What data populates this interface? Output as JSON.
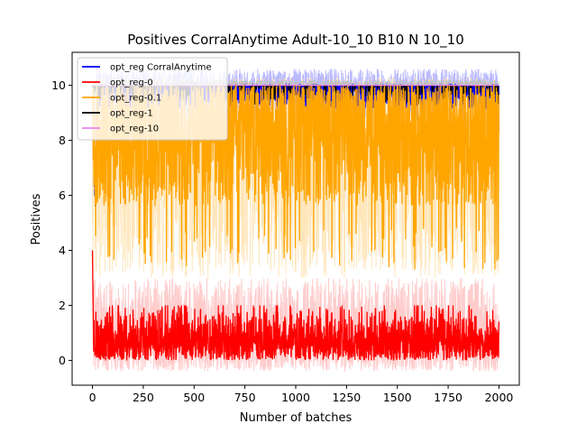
{
  "chart_data": {
    "type": "line",
    "title": "Positives CorralAnytime Adult-10_10 B10 N 10_10",
    "xlabel": "Number of batches",
    "ylabel": "Positives",
    "xlim": [
      -100,
      2100
    ],
    "ylim": [
      -0.9,
      11.2
    ],
    "xticks": [
      0,
      250,
      500,
      750,
      1000,
      1250,
      1500,
      1750,
      2000
    ],
    "yticks": [
      0,
      2,
      4,
      6,
      8,
      10
    ],
    "legend_position": "top-left",
    "grid": false,
    "n_batches": 2000,
    "series": [
      {
        "name": "opt_reg CorralAnytime",
        "color": "#0000ff",
        "band_color": "#b3b3ff",
        "start_value": 9.5,
        "early_dip": 5.4,
        "typical_range": [
          9.3,
          10.0
        ],
        "band_range": [
          8.6,
          10.6
        ]
      },
      {
        "name": "opt_reg-0",
        "color": "#ff0000",
        "band_color": "#ffc6c6",
        "start_value": 4.0,
        "typical_range": [
          0.0,
          1.8
        ],
        "band_range": [
          -0.4,
          3.0
        ]
      },
      {
        "name": "opt_reg-0.1",
        "color": "#ffa500",
        "band_color": "#ffe3b3",
        "start_value": 9.8,
        "typical_range": [
          6.0,
          10.0
        ],
        "min_value": 3.3,
        "band_range": [
          3.0,
          10.3
        ]
      },
      {
        "name": "opt_reg-1",
        "color": "#000000",
        "band_color": "#bfbfbf",
        "start_value": 10.0,
        "typical_range": [
          9.3,
          10.0
        ],
        "band_range": [
          9.5,
          10.2
        ]
      },
      {
        "name": "opt_reg-10",
        "color": "#ee82ee",
        "band_color": "#f8cdf8",
        "start_value": 10.0,
        "typical_range": [
          10.0,
          10.0
        ],
        "band_range": [
          10.0,
          10.0
        ]
      }
    ]
  }
}
